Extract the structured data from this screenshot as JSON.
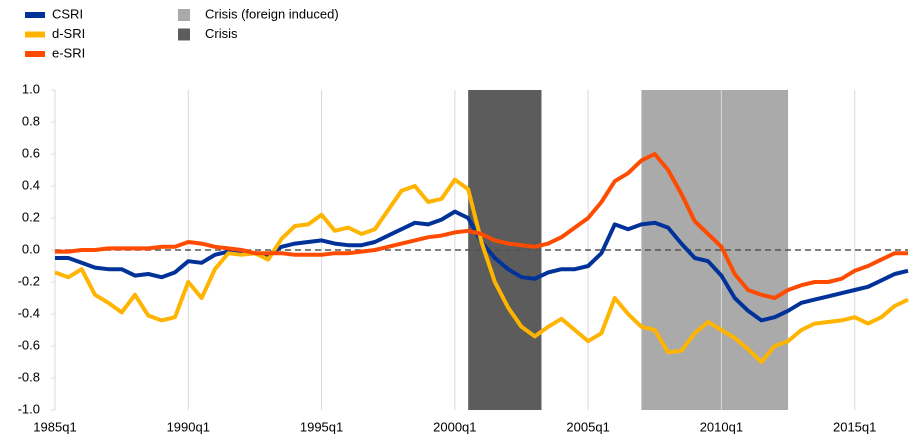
{
  "chart_data": {
    "type": "line",
    "x": [
      1985,
      1985.5,
      1986,
      1986.5,
      1987,
      1987.5,
      1988,
      1988.5,
      1989,
      1989.5,
      1990,
      1990.5,
      1991,
      1991.5,
      1992,
      1992.5,
      1993,
      1993.5,
      1994,
      1994.5,
      1995,
      1995.5,
      1996,
      1996.5,
      1997,
      1997.5,
      1998,
      1998.5,
      1999,
      1999.5,
      2000,
      2000.5,
      2001,
      2001.5,
      2002,
      2002.5,
      2003,
      2003.5,
      2004,
      2004.5,
      2005,
      2005.5,
      2006,
      2006.5,
      2007,
      2007.5,
      2008,
      2008.5,
      2009,
      2009.5,
      2010,
      2010.5,
      2011,
      2011.5,
      2012,
      2012.5,
      2013,
      2013.5,
      2014,
      2014.5,
      2015,
      2015.5,
      2016,
      2016.5,
      2017
    ],
    "series": [
      {
        "name": "CSRI",
        "color": "#003299",
        "values": [
          -0.05,
          -0.05,
          -0.08,
          -0.11,
          -0.12,
          -0.12,
          -0.16,
          -0.15,
          -0.17,
          -0.14,
          -0.07,
          -0.08,
          -0.03,
          -0.01,
          -0.01,
          -0.02,
          -0.03,
          0.02,
          0.04,
          0.05,
          0.06,
          0.04,
          0.03,
          0.03,
          0.05,
          0.09,
          0.13,
          0.17,
          0.16,
          0.19,
          0.24,
          0.2,
          0.05,
          -0.05,
          -0.12,
          -0.17,
          -0.18,
          -0.14,
          -0.12,
          -0.12,
          -0.1,
          -0.02,
          0.16,
          0.13,
          0.16,
          0.17,
          0.14,
          0.04,
          -0.05,
          -0.07,
          -0.16,
          -0.3,
          -0.38,
          -0.44,
          -0.42,
          -0.38,
          -0.33,
          -0.31,
          -0.29,
          -0.27,
          -0.25,
          -0.23,
          -0.19,
          -0.15,
          -0.13
        ]
      },
      {
        "name": "d-SRI",
        "color": "#ffb400",
        "values": [
          -0.14,
          -0.17,
          -0.12,
          -0.28,
          -0.33,
          -0.39,
          -0.28,
          -0.41,
          -0.44,
          -0.42,
          -0.2,
          -0.3,
          -0.12,
          -0.02,
          -0.03,
          -0.02,
          -0.06,
          0.07,
          0.15,
          0.16,
          0.22,
          0.12,
          0.14,
          0.1,
          0.13,
          0.25,
          0.37,
          0.4,
          0.3,
          0.32,
          0.44,
          0.38,
          0.05,
          -0.2,
          -0.36,
          -0.48,
          -0.54,
          -0.48,
          -0.43,
          -0.5,
          -0.57,
          -0.52,
          -0.3,
          -0.4,
          -0.48,
          -0.5,
          -0.64,
          -0.63,
          -0.52,
          -0.45,
          -0.5,
          -0.55,
          -0.62,
          -0.7,
          -0.6,
          -0.57,
          -0.5,
          -0.46,
          -0.45,
          -0.44,
          -0.42,
          -0.46,
          -0.42,
          -0.35,
          -0.31
        ]
      },
      {
        "name": "e-SRI",
        "color": "#ff4b00",
        "values": [
          -0.01,
          -0.01,
          0,
          0,
          0.01,
          0.01,
          0.01,
          0.01,
          0.02,
          0.02,
          0.05,
          0.04,
          0.02,
          0.01,
          0,
          -0.02,
          -0.02,
          -0.02,
          -0.03,
          -0.03,
          -0.03,
          -0.02,
          -0.02,
          -0.01,
          0,
          0.02,
          0.04,
          0.06,
          0.08,
          0.09,
          0.11,
          0.12,
          0.1,
          0.06,
          0.04,
          0.03,
          0.02,
          0.04,
          0.08,
          0.14,
          0.2,
          0.3,
          0.43,
          0.48,
          0.56,
          0.6,
          0.5,
          0.35,
          0.18,
          0.1,
          0.02,
          -0.15,
          -0.25,
          -0.28,
          -0.3,
          -0.25,
          -0.22,
          -0.2,
          -0.2,
          -0.18,
          -0.13,
          -0.1,
          -0.06,
          -0.02,
          -0.02
        ]
      }
    ],
    "shaded": [
      {
        "name": "Crisis (foreign induced)",
        "color": "#aaaaaa",
        "start": 2007,
        "end": 2012.5
      },
      {
        "name": "Crisis",
        "color": "#5c5c5c",
        "start": 2000.5,
        "end": 2003.25
      }
    ],
    "xlim": [
      1985,
      2017
    ],
    "xticks": [
      {
        "value": 1985,
        "label": "1985q1"
      },
      {
        "value": 1990,
        "label": "1990q1"
      },
      {
        "value": 1995,
        "label": "1995q1"
      },
      {
        "value": 2000,
        "label": "2000q1"
      },
      {
        "value": 2005,
        "label": "2005q1"
      },
      {
        "value": 2010,
        "label": "2010q1"
      },
      {
        "value": 2015,
        "label": "2015q1"
      }
    ],
    "ylim": [
      -1,
      1
    ],
    "yticks": [
      {
        "value": -1,
        "label": "-1.0"
      },
      -0.8,
      -0.6,
      -0.4,
      -0.2,
      {
        "value": 0,
        "label": "0.0"
      },
      0.2,
      0.4,
      0.6,
      0.8,
      {
        "value": 1,
        "label": "1.0"
      }
    ],
    "grid": "x",
    "legend": "top-left"
  }
}
